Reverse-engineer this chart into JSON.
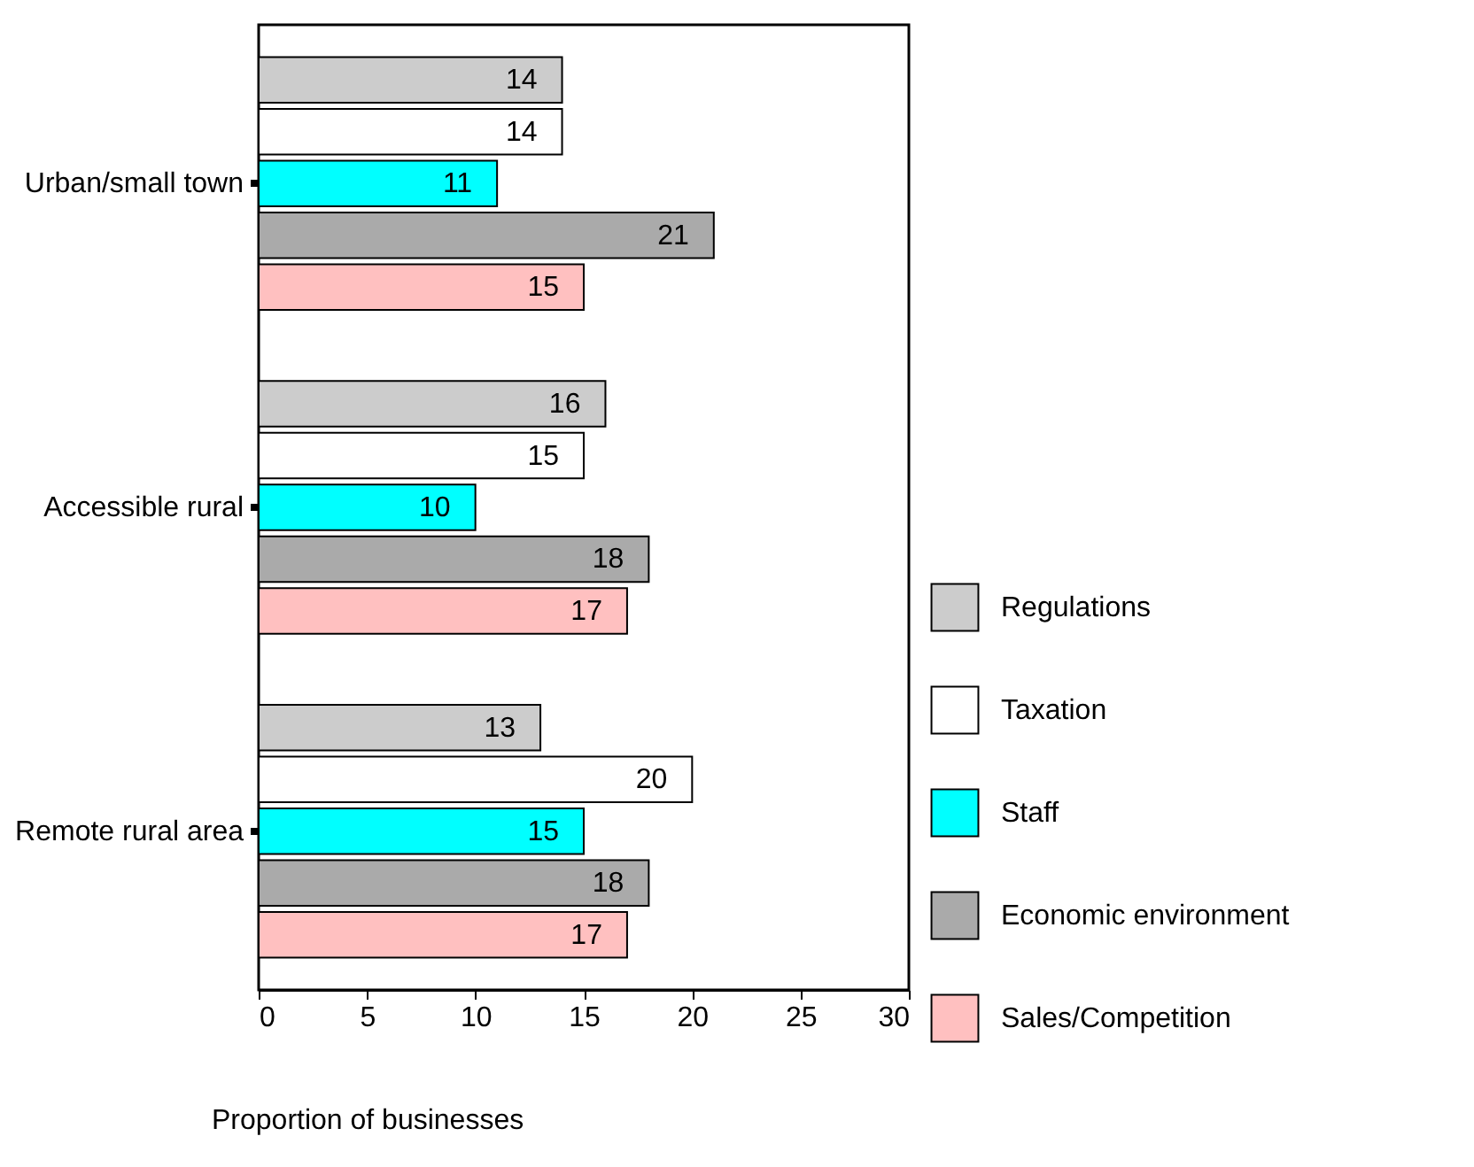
{
  "chart_data": {
    "type": "bar",
    "orientation": "horizontal",
    "xlabel": "Proportion of businesses",
    "categories": [
      "Urban/small town",
      "Accessible rural",
      "Remote rural area"
    ],
    "series": [
      {
        "name": "Regulations",
        "color": "#cccccc",
        "values": [
          14,
          16,
          13
        ]
      },
      {
        "name": "Taxation",
        "color": "#ffffff",
        "values": [
          14,
          15,
          20
        ]
      },
      {
        "name": "Staff",
        "color": "#00ffff",
        "values": [
          11,
          10,
          15
        ]
      },
      {
        "name": "Economic environment",
        "color": "#aaaaaa",
        "values": [
          21,
          18,
          18
        ]
      },
      {
        "name": "Sales/Competition",
        "color": "#ffc0c0",
        "values": [
          15,
          17,
          17
        ]
      }
    ],
    "xlim": [
      0,
      30
    ],
    "xticks": [
      0,
      5,
      10,
      15,
      20,
      25,
      30
    ],
    "data_labels": true,
    "legend": "right",
    "grid": false
  }
}
